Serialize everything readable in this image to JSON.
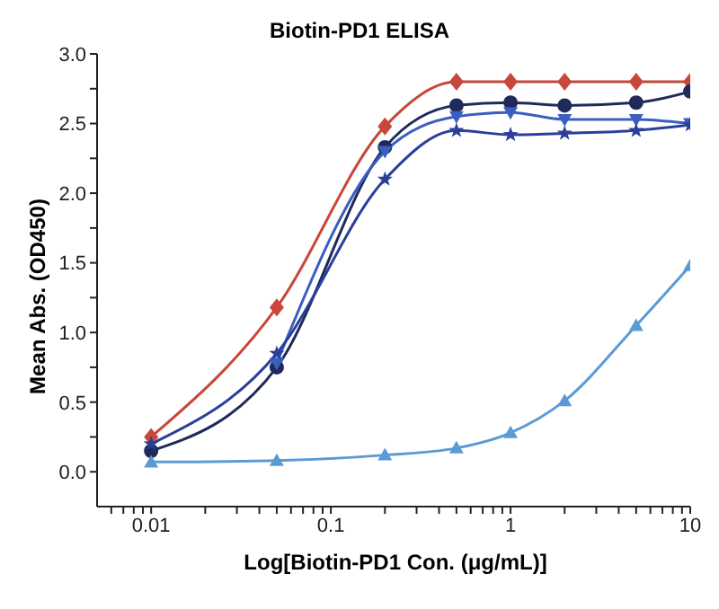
{
  "chart_data": {
    "type": "line",
    "title": "Biotin-PD1 ELISA",
    "xlabel": "Log[Biotin-PD1 Con. (μg/mL)]",
    "ylabel": "Mean Abs. (OD450)",
    "log": "x",
    "grid": false,
    "legend": false,
    "line_style": "solid",
    "x": [
      0.01,
      0.05,
      0.2,
      0.5,
      1,
      2,
      5,
      10
    ],
    "xlim": [
      0.005,
      10
    ],
    "xticks": [
      {
        "value": 0.006,
        "label": null
      },
      {
        "value": 0.007,
        "label": null
      },
      {
        "value": 0.008,
        "label": null
      },
      {
        "value": 0.009,
        "label": null
      },
      0.01,
      {
        "value": 0.02,
        "label": null
      },
      {
        "value": 0.03,
        "label": null
      },
      {
        "value": 0.04,
        "label": null
      },
      {
        "value": 0.05,
        "label": null
      },
      {
        "value": 0.06,
        "label": null
      },
      {
        "value": 0.07,
        "label": null
      },
      {
        "value": 0.08,
        "label": null
      },
      {
        "value": 0.09,
        "label": null
      },
      0.1,
      {
        "value": 0.2,
        "label": null
      },
      {
        "value": 0.3,
        "label": null
      },
      {
        "value": 0.4,
        "label": null
      },
      {
        "value": 0.5,
        "label": null
      },
      {
        "value": 0.6,
        "label": null
      },
      {
        "value": 0.7,
        "label": null
      },
      {
        "value": 0.8,
        "label": null
      },
      {
        "value": 0.9,
        "label": null
      },
      1,
      {
        "value": 2,
        "label": null
      },
      {
        "value": 3,
        "label": null
      },
      {
        "value": 4,
        "label": null
      },
      {
        "value": 5,
        "label": null
      },
      {
        "value": 6,
        "label": null
      },
      {
        "value": 7,
        "label": null
      },
      {
        "value": 8,
        "label": null
      },
      {
        "value": 9,
        "label": null
      },
      10
    ],
    "ylim": [
      -0.25,
      3
    ],
    "yticks": [
      {
        "value": 0,
        "label": "0.0"
      },
      {
        "value": 0.25,
        "label": null
      },
      0.5,
      {
        "value": 0.75,
        "label": null
      },
      {
        "value": 1,
        "label": "1.0"
      },
      {
        "value": 1.25,
        "label": null
      },
      1.5,
      {
        "value": 1.75,
        "label": null
      },
      {
        "value": 2,
        "label": "2.0"
      },
      {
        "value": 2.25,
        "label": null
      },
      2.5,
      {
        "value": 2.75,
        "label": null
      },
      {
        "value": 3,
        "label": "3.0"
      }
    ],
    "series": [
      {
        "color": "#c8473a",
        "marker": "diamond",
        "values": [
          0.25,
          1.18,
          2.48,
          2.8,
          2.8,
          2.8,
          2.8,
          2.8
        ]
      },
      {
        "color": "#1f2a5a",
        "marker": "circle",
        "values": [
          0.15,
          0.75,
          2.33,
          2.63,
          2.65,
          2.63,
          2.65,
          2.73
        ]
      },
      {
        "color": "#3a5fc0",
        "marker": "triangle-down",
        "values": [
          null,
          0.78,
          2.3,
          2.55,
          2.58,
          2.53,
          2.53,
          2.5
        ]
      },
      {
        "color": "#2b3f9a",
        "marker": "star",
        "values": [
          0.2,
          0.85,
          2.1,
          2.45,
          2.42,
          2.43,
          2.45,
          2.49
        ]
      },
      {
        "color": "#5b9bd5",
        "marker": "triangle",
        "values": [
          0.07,
          0.08,
          0.12,
          0.17,
          0.28,
          0.51,
          1.05,
          1.48
        ]
      }
    ]
  }
}
